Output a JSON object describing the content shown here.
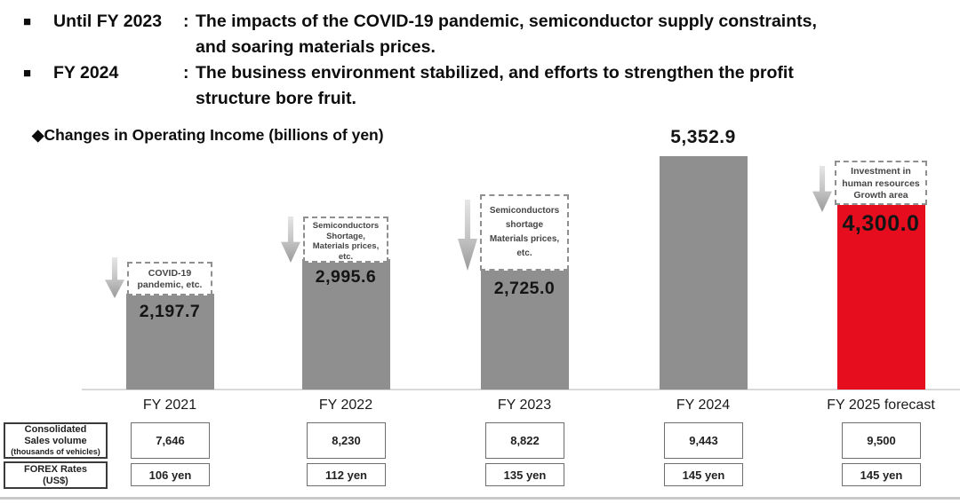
{
  "header": {
    "items": [
      {
        "label": "Until FY 2023",
        "colon": ":",
        "line1": "The impacts of the COVID-19 pandemic, semiconductor supply constraints,",
        "line2": "and soaring materials prices."
      },
      {
        "label": "FY 2024",
        "colon": ":",
        "line1": "The business environment stabilized, and efforts to strengthen the profit",
        "line2": "structure bore fruit."
      }
    ]
  },
  "chart_title": "◆Changes in Operating Income (billions of yen)",
  "chart_data": {
    "type": "bar",
    "title": "Changes in Operating Income (billions of yen)",
    "unit": "billions of yen",
    "categories": [
      "FY 2021",
      "FY 2022",
      "FY 2023",
      "FY 2024",
      "FY 2025 forecast"
    ],
    "values": [
      2197.7,
      2995.6,
      2725.0,
      5352.9,
      4300.0
    ],
    "value_labels": [
      "2,197.7",
      "2,995.6",
      "2,725.0",
      "5,352.9",
      "4,300.0"
    ],
    "ylim": [
      0,
      5500
    ],
    "bar_colors": [
      "#8f8f8f",
      "#8f8f8f",
      "#8f8f8f",
      "#8f8f8f",
      "#e60e1e"
    ],
    "legend": "none",
    "grid": false,
    "annotations": [
      {
        "bar": 0,
        "arrow": "down",
        "lines": [
          "COVID-19",
          "pandemic, etc."
        ]
      },
      {
        "bar": 1,
        "arrow": "down",
        "lines": [
          "Semiconductors",
          "Shortage,",
          "Materials prices,",
          "etc."
        ]
      },
      {
        "bar": 2,
        "arrow": "down",
        "lines": [
          "Semiconductors",
          "shortage",
          "Materials prices,",
          "etc."
        ]
      },
      {
        "bar": 4,
        "arrow": "down",
        "lines": [
          "Investment in",
          "human resources",
          "Growth area"
        ]
      }
    ]
  },
  "table": {
    "rows": [
      {
        "label_lines": [
          "Consolidated",
          "Sales volume"
        ],
        "label_sub": "(thousands of vehicles)",
        "values": [
          "7,646",
          "8,230",
          "8,822",
          "9,443",
          "9,500"
        ]
      },
      {
        "label_lines": [
          "FOREX Rates",
          "(US$)"
        ],
        "label_sub": "",
        "values": [
          "106 yen",
          "112 yen",
          "135 yen",
          "145 yen",
          "145 yen"
        ]
      }
    ]
  },
  "colors": {
    "bar_gray": "#8f8f8f",
    "bar_red": "#e60e1e",
    "annotation_border": "#8f8f8f",
    "axis_line": "#d9d9d9"
  }
}
